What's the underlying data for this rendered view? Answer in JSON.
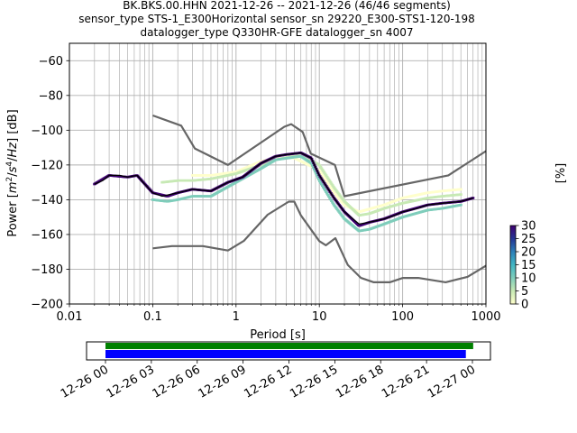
{
  "figure": {
    "title_lines": [
      "BK.BKS.00.HHN   2021-12-26 -- 2021-12-26  (46/46 segments)",
      "sensor_type STS-1_E300Horizontal sensor_sn 29220_E300-STS1-120-198",
      "datalogger_type Q330HR-GFE datalogger_sn 4007"
    ]
  },
  "chart_data": [
    {
      "type": "heatmap",
      "title": "",
      "xlabel": "Period [s]",
      "ylabel_parts": [
        "Power [",
        "m",
        "2",
        "/",
        "s",
        "4",
        "/",
        "Hz",
        "] [dB]"
      ],
      "x_scale": "log",
      "xlim": [
        0.01,
        1000
      ],
      "ylim": [
        -200,
        -50
      ],
      "x_ticks": [
        0.01,
        0.1,
        1,
        10,
        100,
        1000
      ],
      "x_tick_labels": [
        "0.01",
        "0.1",
        "1",
        "10",
        "100",
        "1000"
      ],
      "y_ticks": [
        -200,
        -180,
        -160,
        -140,
        -120,
        -100,
        -80,
        -60
      ],
      "y_tick_labels": [
        "−200",
        "−180",
        "−160",
        "−140",
        "−120",
        "−100",
        "−80",
        "−60"
      ],
      "grid": true,
      "colormap": [
        "#ffffcc",
        "#c7e9b4",
        "#7fcdbb",
        "#41b6c4",
        "#2c7fb8",
        "#253494",
        "#3f0071"
      ],
      "colorbar": {
        "label": "[%]",
        "range": [
          0,
          30
        ],
        "ticks": [
          0,
          5,
          10,
          15,
          20,
          25,
          30
        ],
        "tick_labels": [
          "0",
          "5",
          "10",
          "15",
          "20",
          "25",
          "30"
        ]
      },
      "mean_curve": {
        "color": "#000000",
        "x": [
          0.02,
          0.025,
          0.03,
          0.04,
          0.05,
          0.065,
          0.08,
          0.1,
          0.13,
          0.2,
          0.3,
          0.5,
          0.8,
          1.2,
          2,
          3,
          4,
          6,
          8,
          10,
          15,
          20,
          30,
          40,
          60,
          80,
          100,
          150,
          200,
          300,
          500,
          700
        ],
        "y": [
          -131,
          -129,
          -126,
          -126,
          -127,
          -126,
          -131,
          -136,
          -138,
          -136,
          -134,
          -135,
          -130,
          -127,
          -119,
          -115,
          -114,
          -113,
          -116,
          -126,
          -139,
          -147,
          -154,
          -153,
          -151,
          -149,
          -147,
          -145,
          -143,
          -142,
          -141,
          -139
        ]
      },
      "density_bands": [
        {
          "x": [
            0.02,
            0.03,
            0.05,
            0.065,
            0.1,
            0.15,
            0.2,
            0.3,
            0.5,
            0.8,
            1.2,
            2,
            3,
            4,
            6,
            8,
            10,
            15,
            20,
            30,
            40,
            60,
            100,
            200,
            300,
            500,
            700
          ],
          "y": [
            -131,
            -126,
            -127,
            -126,
            -136,
            -138,
            -136,
            -134,
            -135,
            -130,
            -127,
            -119,
            -115,
            -114,
            -113,
            -116,
            -126,
            -139,
            -147,
            -155,
            -153,
            -151,
            -147,
            -143,
            -142,
            -141,
            -139
          ],
          "percent": 28
        },
        {
          "x": [
            0.1,
            0.15,
            0.2,
            0.3,
            0.5,
            2,
            3,
            6,
            8,
            10,
            15,
            20,
            30,
            40,
            60,
            100,
            200,
            300,
            500
          ],
          "y": [
            -140,
            -141,
            -140,
            -138,
            -138,
            -122,
            -117,
            -115,
            -119,
            -129,
            -143,
            -151,
            -158,
            -157,
            -154,
            -150,
            -146,
            -145,
            -143
          ],
          "percent": 12
        },
        {
          "x": [
            0.13,
            0.2,
            0.3,
            0.5,
            1,
            2,
            3,
            6,
            10,
            15,
            20,
            30,
            40,
            60,
            100,
            200,
            300,
            500
          ],
          "y": [
            -130,
            -129,
            -129,
            -128,
            -125,
            -120,
            -117,
            -114,
            -120,
            -133,
            -141,
            -149,
            -148,
            -145,
            -142,
            -139,
            -138,
            -137
          ],
          "percent": 5
        },
        {
          "x": [
            0.3,
            0.5,
            1,
            2,
            3,
            5,
            10,
            15,
            20,
            30,
            60,
            100,
            200,
            300,
            500
          ],
          "y": [
            -126,
            -126,
            -124,
            -118,
            -116,
            -116,
            -123,
            -136,
            -143,
            -147,
            -143,
            -139,
            -136,
            -135,
            -134
          ],
          "percent": 2
        }
      ],
      "noise_model_lines": [
        {
          "name": "",
          "color": "#666666",
          "x": [
            0.1,
            0.22,
            0.32,
            0.8,
            3.8,
            4.6,
            6.3,
            7.9,
            15.4,
            20,
            354,
            1000
          ],
          "y": [
            -91.5,
            -97.4,
            -110.5,
            -120,
            -98,
            -96.5,
            -101,
            -113.5,
            -120,
            -138,
            -126,
            -112
          ]
        },
        {
          "name": "",
          "color": "#666666",
          "x": [
            0.1,
            0.17,
            0.4,
            0.8,
            1.24,
            2.4,
            4.3,
            5,
            6,
            10,
            12,
            15.6,
            21.9,
            31.6,
            45,
            70,
            101,
            154,
            328,
            600,
            1000
          ],
          "y": [
            -168,
            -166.7,
            -166.7,
            -169.2,
            -163.7,
            -148.6,
            -141.1,
            -141.1,
            -149,
            -163.8,
            -166.2,
            -162.1,
            -177.5,
            -185,
            -187.5,
            -187.5,
            -185,
            -185,
            -187.5,
            -184.4,
            -178
          ]
        }
      ]
    }
  ],
  "timeline": {
    "start_percent": 0,
    "end_percent": 100,
    "green_bar_end_percent": 98,
    "blue_bar_end_percent": 96,
    "colors": {
      "green": "#008000",
      "blue": "#0000ff"
    },
    "tick_labels": [
      "12-26 00",
      "12-26 03",
      "12-26 06",
      "12-26 09",
      "12-26 12",
      "12-26 15",
      "12-26 18",
      "12-26 21",
      "12-27 00"
    ]
  }
}
